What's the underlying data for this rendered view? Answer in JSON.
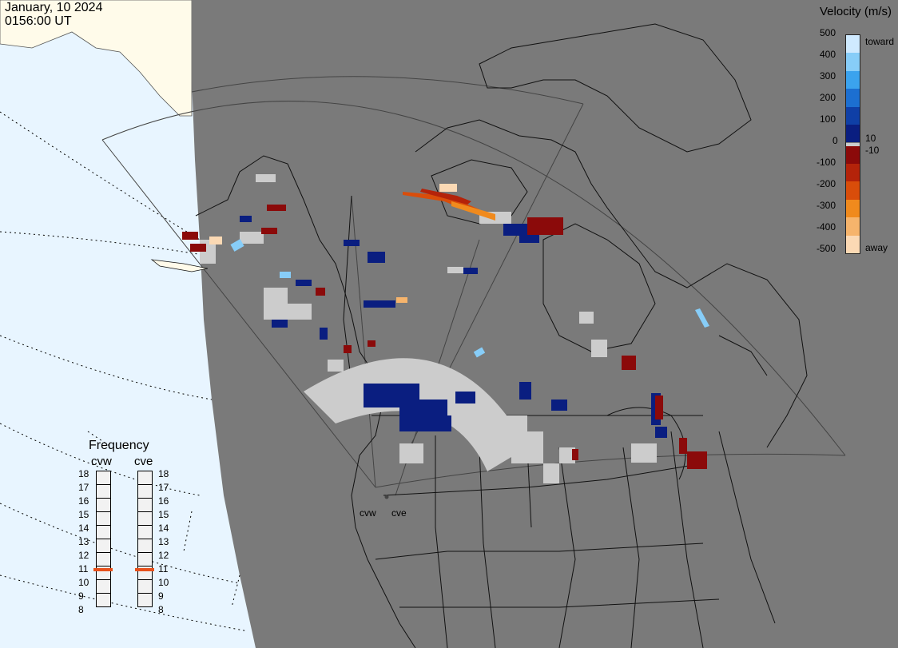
{
  "header": {
    "date": "January, 10 2024",
    "time": "0156:00 UT"
  },
  "legend": {
    "title": "Velocity (m/s)",
    "ticks": [
      "500",
      "400",
      "300",
      "200",
      "100",
      "10",
      "0",
      "-10",
      "-100",
      "-200",
      "-300",
      "-400",
      "-500"
    ],
    "toward_label": "toward",
    "away_label": "away",
    "colors": [
      "#cfeaff",
      "#87cdf8",
      "#3ba3ee",
      "#1c6fd1",
      "#0f3fa6",
      "#0a1e80",
      "#8b0a0a",
      "#b4230a",
      "#d94d0a",
      "#f08a1d",
      "#f6b46c",
      "#fbd9b4"
    ],
    "zero_color": "#cccccc"
  },
  "frequency": {
    "title": "Frequency",
    "radars": [
      {
        "name": "cvw",
        "value_mhz": 11
      },
      {
        "name": "cve",
        "value_mhz": 11
      }
    ],
    "scale": [
      "18",
      "17",
      "16",
      "15",
      "14",
      "13",
      "12",
      "11",
      "10",
      "9",
      "8"
    ],
    "marker_color": "#e8511c"
  },
  "map": {
    "radar_labels": [
      "cvw",
      "cve"
    ],
    "colors": {
      "ocean": "#e8f5ff",
      "land_outside": "#fffbea",
      "night": "#7a7a7a",
      "ground_scatter": "#cccccc"
    }
  }
}
